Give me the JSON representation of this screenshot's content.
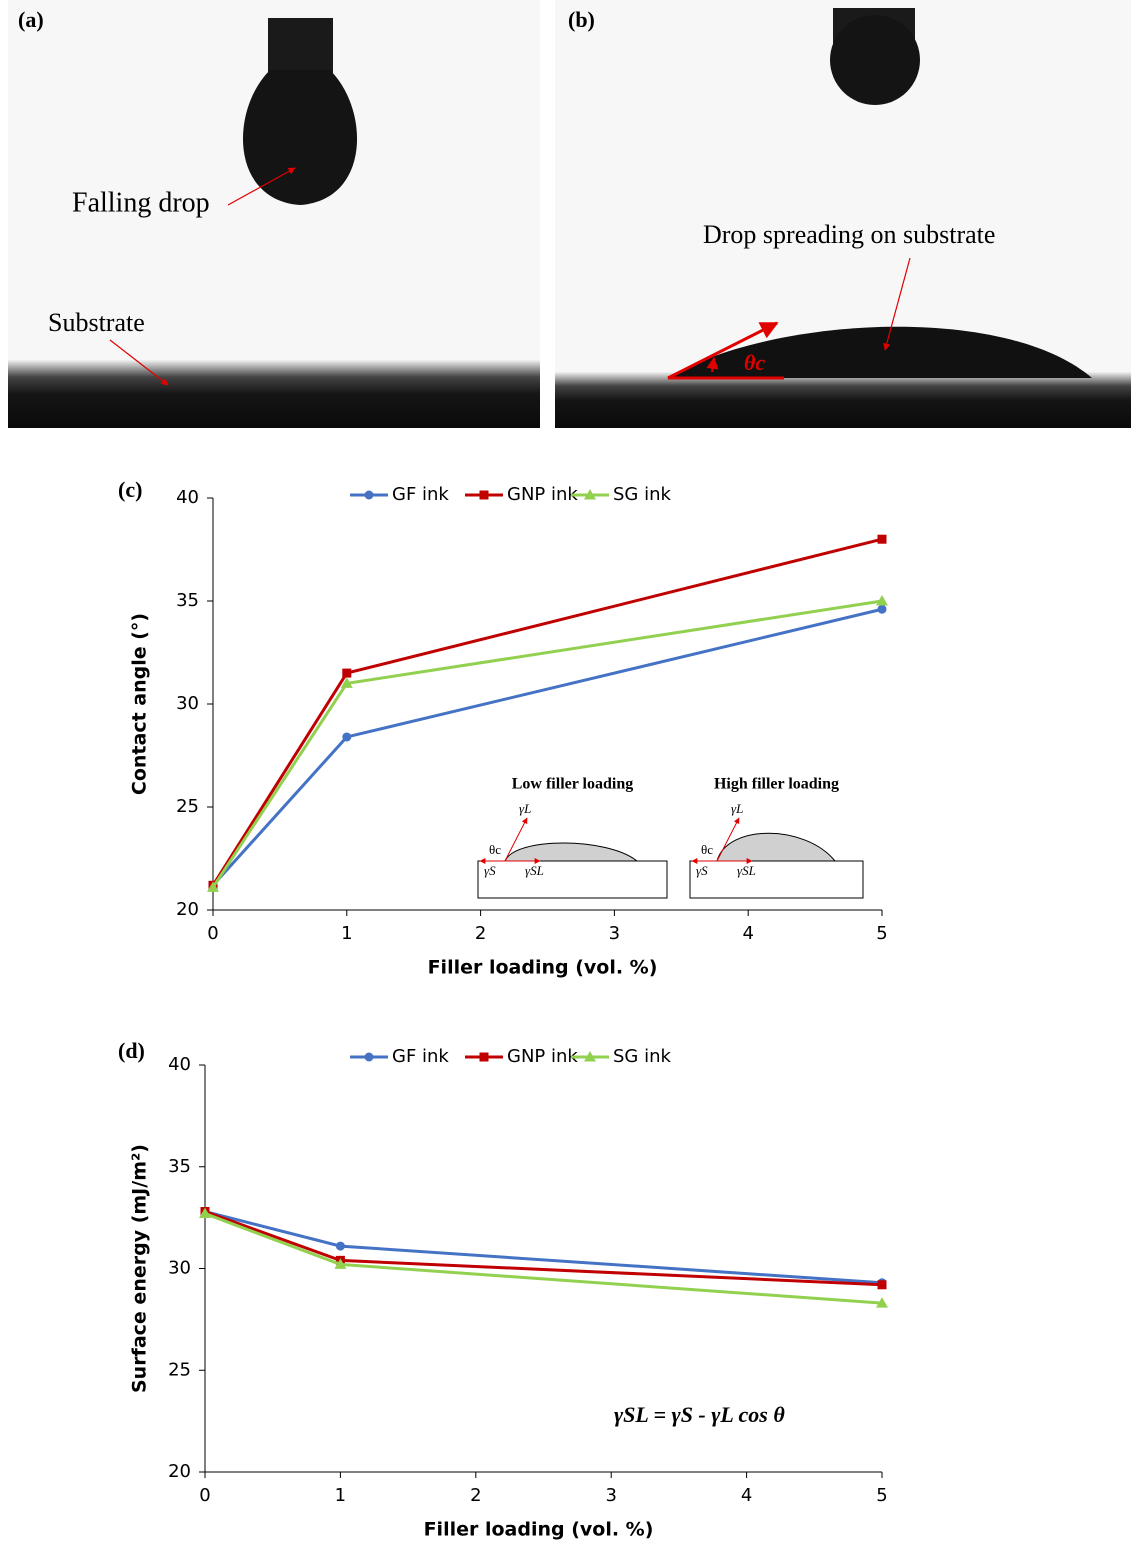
{
  "panels": [
    {
      "label": "(a)",
      "annotations": [
        "Falling drop",
        "Substrate"
      ]
    },
    {
      "label": "(b)",
      "annotations": [
        "Drop spreading on substrate",
        "θc"
      ]
    }
  ],
  "chart_data": [
    {
      "type": "line",
      "panel_label": "(c)",
      "x_label": "Filler loading (vol. %)",
      "y_label": "Contact angle (°)",
      "x": [
        0,
        1,
        5
      ],
      "xlim": [
        0,
        5
      ],
      "xticks": [
        0,
        1,
        2,
        3,
        4,
        5
      ],
      "ylim": [
        20,
        40
      ],
      "yticks": [
        20,
        25,
        30,
        35,
        40
      ],
      "series": [
        {
          "name": "GF ink",
          "color": "#4472c4",
          "marker": "circle",
          "values": [
            21.2,
            28.4,
            34.6
          ]
        },
        {
          "name": "GNP ink",
          "color": "#c00000",
          "marker": "square",
          "values": [
            21.2,
            31.5,
            38.0
          ]
        },
        {
          "name": "SG ink",
          "color": "#92d050",
          "marker": "triangle",
          "values": [
            21.1,
            31.0,
            35.0
          ]
        }
      ],
      "insets": [
        {
          "title": "Low filler loading",
          "labels": [
            "γL",
            "θc",
            "γS",
            "γSL"
          ]
        },
        {
          "title": "High filler loading",
          "labels": [
            "γL",
            "θc",
            "γS",
            "γSL"
          ]
        }
      ]
    },
    {
      "type": "line",
      "panel_label": "(d)",
      "x_label": "Filler loading (vol. %)",
      "y_label": "Surface energy (mJ/m²)",
      "x": [
        0,
        1,
        5
      ],
      "xlim": [
        0,
        5
      ],
      "xticks": [
        0,
        1,
        2,
        3,
        4,
        5
      ],
      "ylim": [
        20,
        40
      ],
      "yticks": [
        20,
        25,
        30,
        35,
        40
      ],
      "series": [
        {
          "name": "GF ink",
          "color": "#4472c4",
          "marker": "circle",
          "values": [
            32.8,
            31.1,
            29.3
          ]
        },
        {
          "name": "GNP ink",
          "color": "#c00000",
          "marker": "square",
          "values": [
            32.8,
            30.4,
            29.2
          ]
        },
        {
          "name": "SG ink",
          "color": "#92d050",
          "marker": "triangle",
          "values": [
            32.7,
            30.2,
            28.3
          ]
        }
      ],
      "equation": "γSL = γS - γL cos θ"
    }
  ]
}
